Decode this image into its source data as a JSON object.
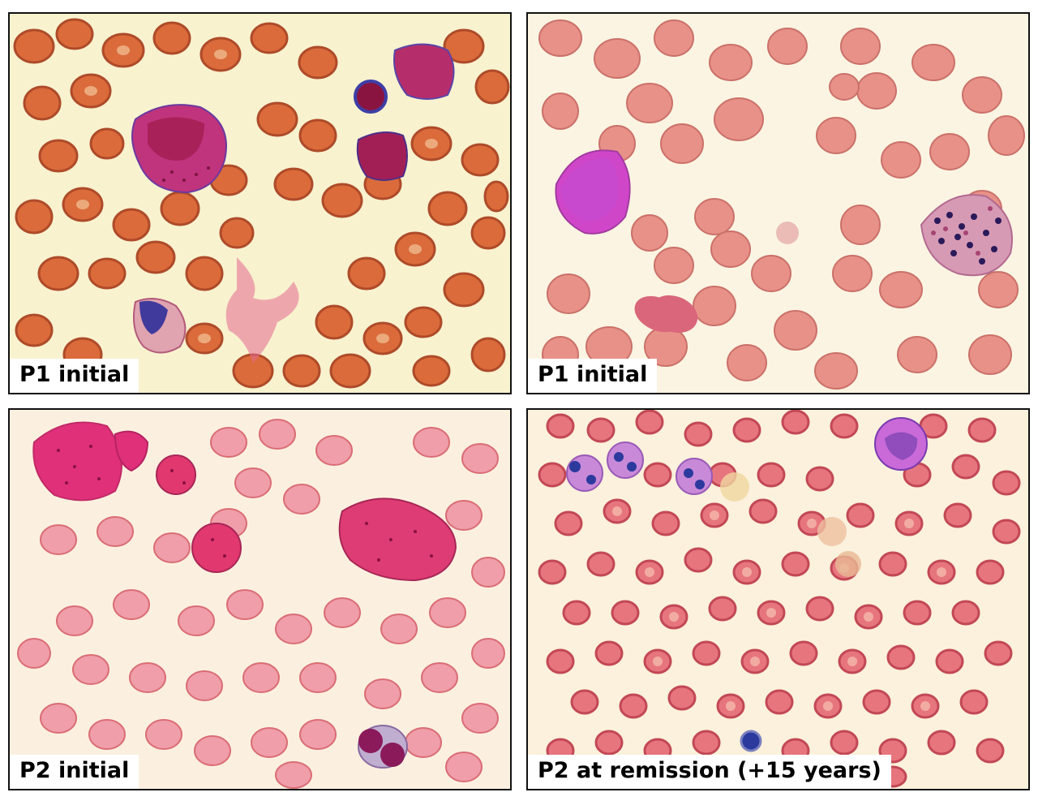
{
  "panels": [
    {
      "caption": "P1 initial"
    },
    {
      "caption": "P1 initial"
    },
    {
      "caption": "P2 initial"
    },
    {
      "caption": "P2 at remission (+15 years)"
    }
  ],
  "colors": {
    "background_warm": "#f8f2cf",
    "background_pale": "#fbf4e2",
    "rbc_orange": "#d9602f",
    "rbc_pink": "#e88c84",
    "rbc_rose": "#e66f7a",
    "blast_magenta": "#c0337d",
    "nucleus_purple": "#5b2c8d",
    "granule_red": "#c02040"
  }
}
